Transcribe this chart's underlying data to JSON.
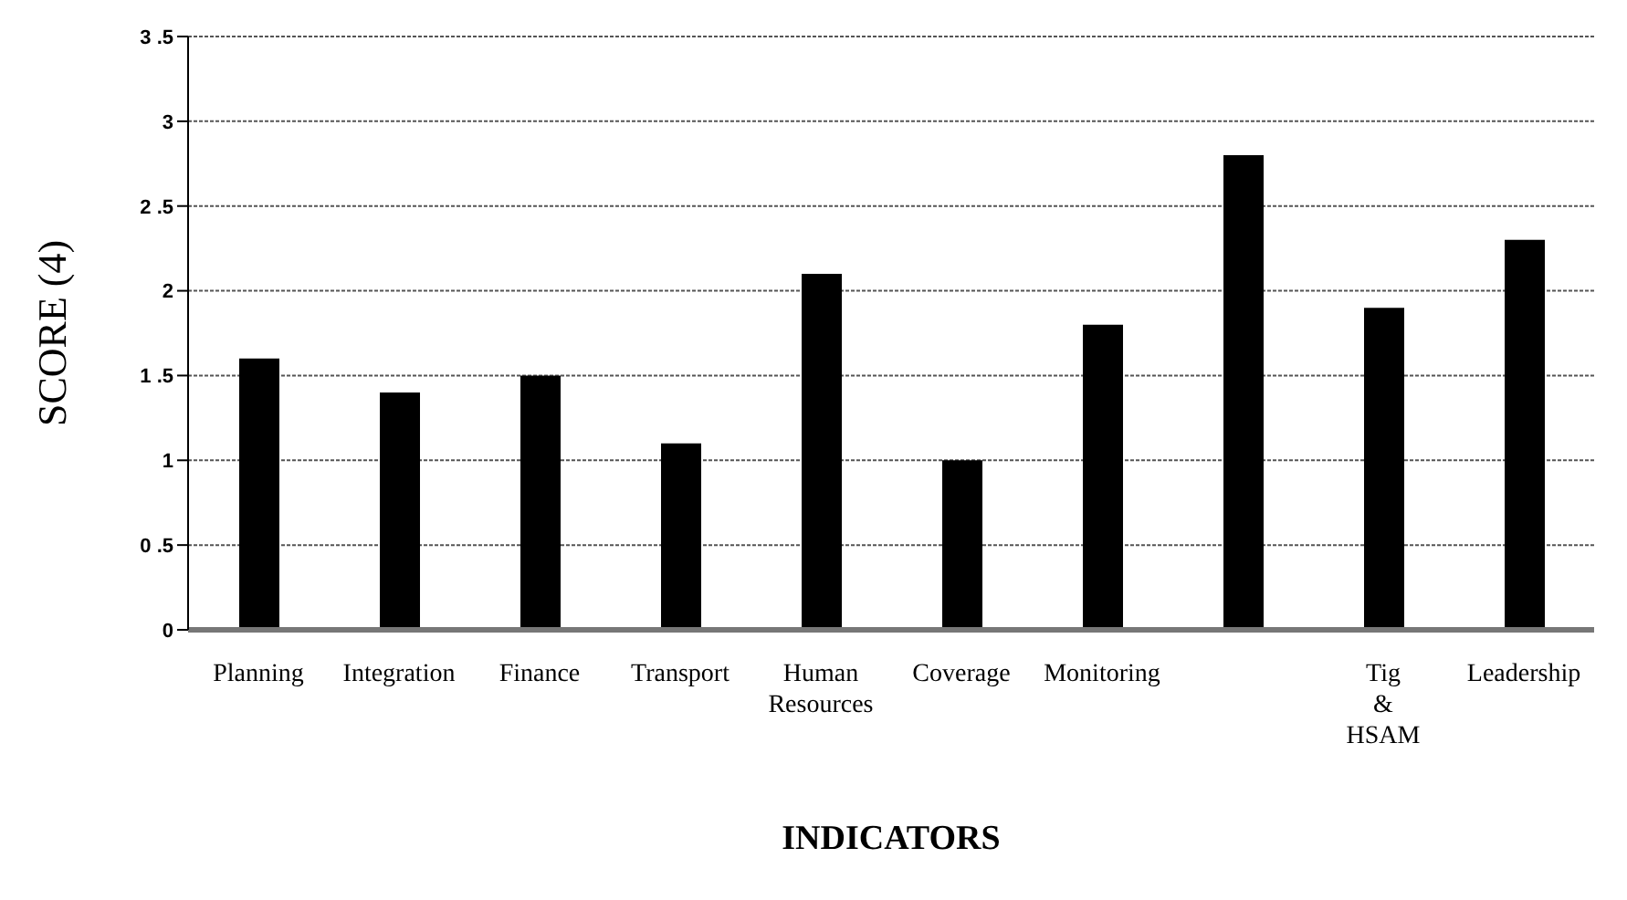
{
  "chart_data": {
    "type": "bar",
    "xlabel": "INDICATORS",
    "ylabel": "SCORE (4)",
    "categories": [
      "Planning",
      "Integration",
      "Finance",
      "Transport",
      "Human Resources",
      "Coverage",
      "Monitoring",
      null,
      "Tig & HSAM",
      "Leadership"
    ],
    "values": [
      1.6,
      1.4,
      1.5,
      1.1,
      2.1,
      1.0,
      1.8,
      2.8,
      1.9,
      2.3
    ],
    "color": "#000000",
    "ylim": [
      0,
      3.5
    ],
    "yticks": [
      0,
      {
        "value": 0.5,
        "label": "0 .5"
      },
      1,
      {
        "value": 1.5,
        "label": "1 .5"
      },
      2,
      {
        "value": 2.5,
        "label": "2 .5"
      },
      3,
      {
        "value": 3.5,
        "label": "3 .5"
      }
    ],
    "grid": "y"
  }
}
